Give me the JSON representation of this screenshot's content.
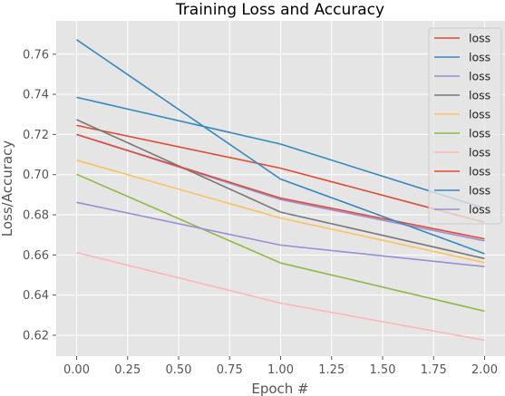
{
  "chart_data": {
    "type": "line",
    "title": "Training Loss and Accuracy",
    "xlabel": "Epoch #",
    "ylabel": "Loss/Accuracy",
    "x": [
      0,
      1,
      2
    ],
    "xlim": [
      -0.1,
      2.1
    ],
    "ylim": [
      0.6096,
      0.7766
    ],
    "xticks": [
      "0.00",
      "0.25",
      "0.50",
      "0.75",
      "1.00",
      "1.25",
      "1.50",
      "1.75",
      "2.00"
    ],
    "yticks": [
      "0.62",
      "0.64",
      "0.66",
      "0.68",
      "0.70",
      "0.72",
      "0.74",
      "0.76"
    ],
    "grid": true,
    "legend_position": "top-right",
    "series": [
      {
        "name": "loss",
        "color": "#E24A33",
        "values": [
          0.7245,
          0.7032,
          0.6762
        ]
      },
      {
        "name": "loss",
        "color": "#348ABD",
        "values": [
          0.7385,
          0.7152,
          0.6832
        ]
      },
      {
        "name": "loss",
        "color": "#988ED5",
        "values": [
          0.72,
          0.6876,
          0.667
        ]
      },
      {
        "name": "loss",
        "color": "#777777",
        "values": [
          0.7274,
          0.6813,
          0.6582
        ]
      },
      {
        "name": "loss",
        "color": "#FBC15E",
        "values": [
          0.7072,
          0.6784,
          0.6562
        ]
      },
      {
        "name": "loss",
        "color": "#8EBA42",
        "values": [
          0.7002,
          0.656,
          0.632
        ]
      },
      {
        "name": "loss",
        "color": "#FFB5B8",
        "values": [
          0.6612,
          0.636,
          0.6175
        ]
      },
      {
        "name": "loss",
        "color": "#E24A33",
        "values": [
          0.72,
          0.6883,
          0.668
        ]
      },
      {
        "name": "loss",
        "color": "#348ABD",
        "values": [
          0.7672,
          0.6978,
          0.6606
        ]
      },
      {
        "name": "loss",
        "color": "#988ED5",
        "values": [
          0.6862,
          0.6649,
          0.6542
        ]
      }
    ]
  }
}
